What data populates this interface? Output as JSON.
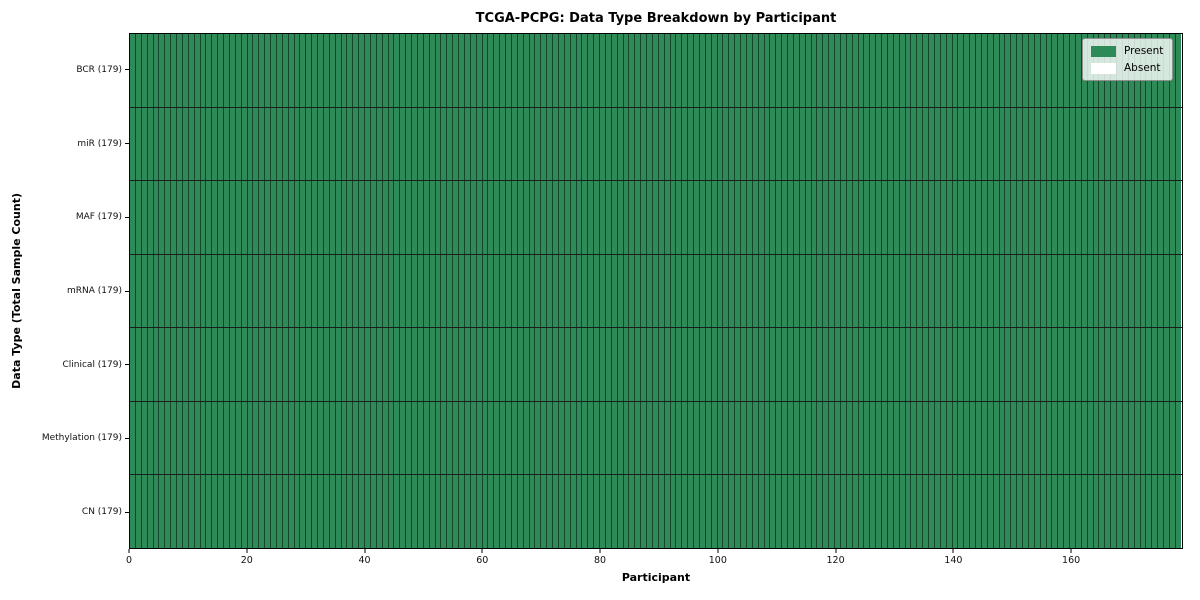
{
  "figure": {
    "title": "TCGA-PCPG: Data Type Breakdown by Participant",
    "xlabel": "Participant",
    "ylabel": "Data Type (Total Sample Count)"
  },
  "legend": {
    "position": "upper-right",
    "items": [
      {
        "label": "Present",
        "color": "#2e8b57"
      },
      {
        "label": "Absent",
        "color": "#ffffff"
      }
    ]
  },
  "chart_data": {
    "type": "heatmap",
    "title": "TCGA-PCPG: Data Type Breakdown by Participant",
    "xlabel": "Participant",
    "ylabel": "Data Type (Total Sample Count)",
    "x_range": [
      0,
      179
    ],
    "x_ticks": [
      0,
      20,
      40,
      60,
      80,
      100,
      120,
      140,
      160
    ],
    "n_participants": 179,
    "rows": [
      {
        "label": "BCR (179)",
        "data_type": "BCR",
        "total_sample_count": 179,
        "present_count": 179,
        "absent_count": 0
      },
      {
        "label": "miR (179)",
        "data_type": "miR",
        "total_sample_count": 179,
        "present_count": 179,
        "absent_count": 0
      },
      {
        "label": "MAF (179)",
        "data_type": "MAF",
        "total_sample_count": 179,
        "present_count": 179,
        "absent_count": 0
      },
      {
        "label": "mRNA (179)",
        "data_type": "mRNA",
        "total_sample_count": 179,
        "present_count": 179,
        "absent_count": 0
      },
      {
        "label": "Clinical (179)",
        "data_type": "Clinical",
        "total_sample_count": 179,
        "present_count": 179,
        "absent_count": 0
      },
      {
        "label": "Methylation (179)",
        "data_type": "Methylation",
        "total_sample_count": 179,
        "present_count": 179,
        "absent_count": 0
      },
      {
        "label": "CN (179)",
        "data_type": "CN",
        "total_sample_count": 179,
        "present_count": 179,
        "absent_count": 0
      }
    ],
    "all_cells_present": true,
    "cell_encoding": {
      "present": 1,
      "absent": 0
    },
    "colors": {
      "present": "#2e8b57",
      "absent": "#ffffff",
      "grid_line": "#1c1c1c",
      "frame": "#000000"
    },
    "grid": true,
    "legend_position": "upper right"
  }
}
